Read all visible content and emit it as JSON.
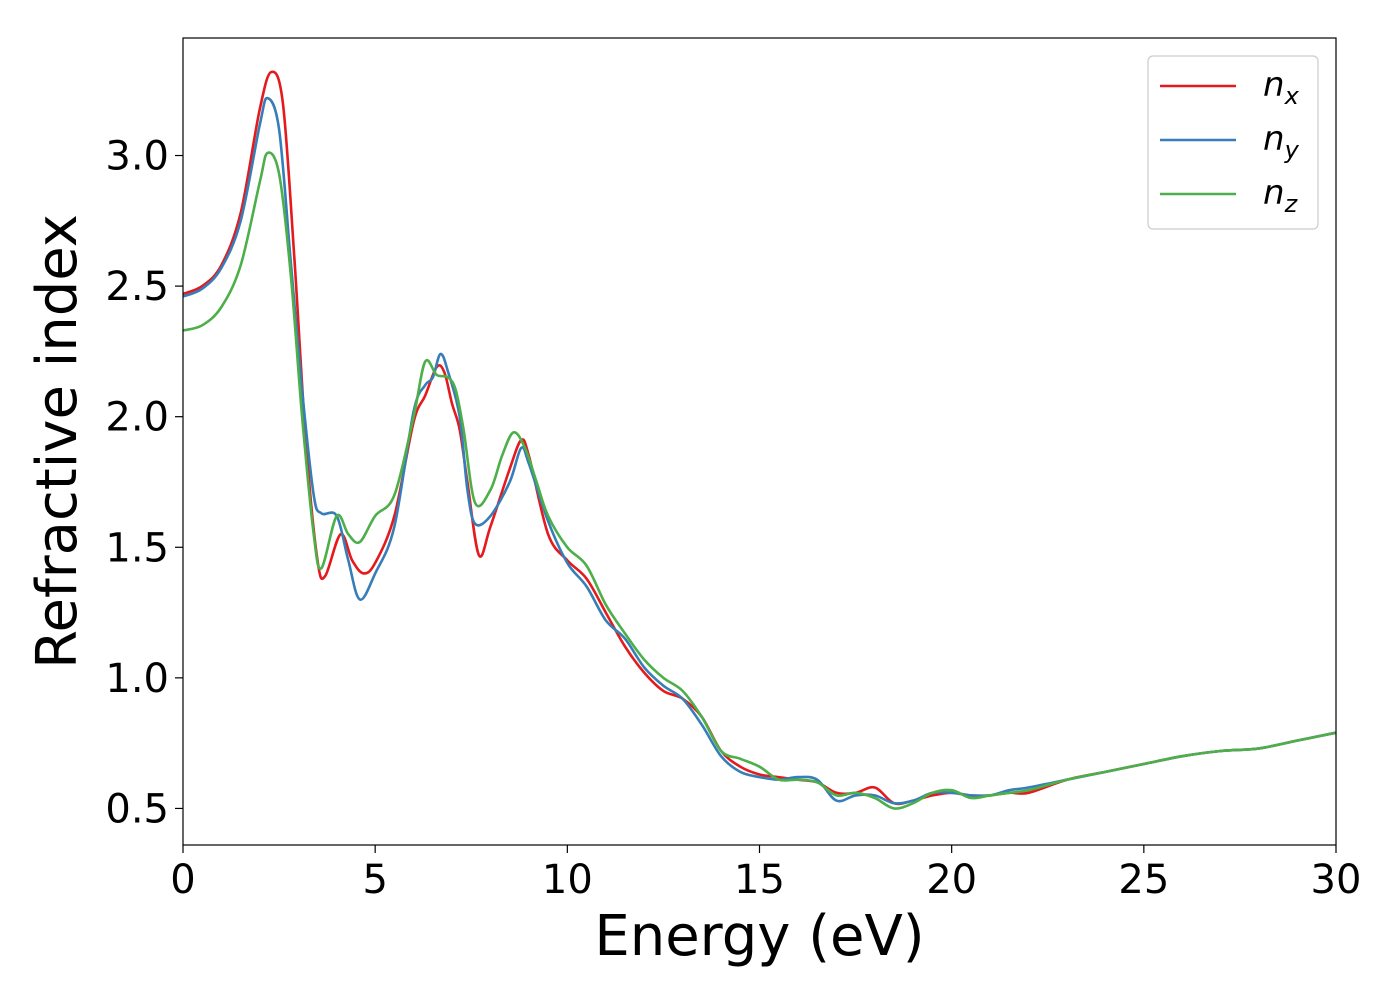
{
  "chart_data": {
    "type": "line",
    "title": "",
    "xlabel": "Energy (eV)",
    "ylabel": "Refractive index",
    "xlim": [
      0,
      30
    ],
    "ylim": [
      0.36,
      3.45
    ],
    "xticks": [
      0,
      5,
      10,
      15,
      20,
      25,
      30
    ],
    "xtick_labels": [
      "0",
      "5",
      "10",
      "15",
      "20",
      "25",
      "30"
    ],
    "yticks": [
      0.5,
      1.0,
      1.5,
      2.0,
      2.5,
      3.0
    ],
    "ytick_labels": [
      "0.5",
      "1.0",
      "1.5",
      "2.0",
      "2.5",
      "3.0"
    ],
    "grid": false,
    "legend_position": "top-right",
    "series": [
      {
        "name": "n",
        "subscript": "x",
        "color": "#e41a1c",
        "points": [
          [
            0,
            2.47
          ],
          [
            0.5,
            2.5
          ],
          [
            1.0,
            2.58
          ],
          [
            1.5,
            2.78
          ],
          [
            2.0,
            3.18
          ],
          [
            2.3,
            3.32
          ],
          [
            2.6,
            3.2
          ],
          [
            2.9,
            2.6
          ],
          [
            3.2,
            1.9
          ],
          [
            3.5,
            1.45
          ],
          [
            3.7,
            1.39
          ],
          [
            4.1,
            1.55
          ],
          [
            4.4,
            1.45
          ],
          [
            4.7,
            1.4
          ],
          [
            5.0,
            1.44
          ],
          [
            5.5,
            1.62
          ],
          [
            6.0,
            1.98
          ],
          [
            6.3,
            2.08
          ],
          [
            6.6,
            2.19
          ],
          [
            6.8,
            2.17
          ],
          [
            7.0,
            2.05
          ],
          [
            7.2,
            1.95
          ],
          [
            7.4,
            1.75
          ],
          [
            7.7,
            1.47
          ],
          [
            8.0,
            1.58
          ],
          [
            8.5,
            1.8
          ],
          [
            8.8,
            1.91
          ],
          [
            9.0,
            1.85
          ],
          [
            9.5,
            1.55
          ],
          [
            10.0,
            1.45
          ],
          [
            10.5,
            1.38
          ],
          [
            11.0,
            1.25
          ],
          [
            11.5,
            1.12
          ],
          [
            12.0,
            1.02
          ],
          [
            12.5,
            0.95
          ],
          [
            13.0,
            0.92
          ],
          [
            13.5,
            0.85
          ],
          [
            14.0,
            0.72
          ],
          [
            14.5,
            0.66
          ],
          [
            15.0,
            0.63
          ],
          [
            15.5,
            0.62
          ],
          [
            16.0,
            0.61
          ],
          [
            16.5,
            0.6
          ],
          [
            17.0,
            0.56
          ],
          [
            17.5,
            0.56
          ],
          [
            18.0,
            0.58
          ],
          [
            18.5,
            0.52
          ],
          [
            19.0,
            0.53
          ],
          [
            19.5,
            0.55
          ],
          [
            20.0,
            0.56
          ],
          [
            20.5,
            0.55
          ],
          [
            21.0,
            0.55
          ],
          [
            21.5,
            0.56
          ],
          [
            22.0,
            0.56
          ],
          [
            23.0,
            0.61
          ],
          [
            24.0,
            0.64
          ],
          [
            25.0,
            0.67
          ],
          [
            26.0,
            0.7
          ],
          [
            27.0,
            0.72
          ],
          [
            28.0,
            0.73
          ],
          [
            29.0,
            0.76
          ],
          [
            30.0,
            0.79
          ]
        ]
      },
      {
        "name": "n",
        "subscript": "y",
        "color": "#377eb8",
        "points": [
          [
            0,
            2.46
          ],
          [
            0.5,
            2.49
          ],
          [
            1.0,
            2.57
          ],
          [
            1.5,
            2.75
          ],
          [
            2.0,
            3.12
          ],
          [
            2.2,
            3.22
          ],
          [
            2.5,
            3.1
          ],
          [
            2.8,
            2.6
          ],
          [
            3.1,
            2.1
          ],
          [
            3.4,
            1.7
          ],
          [
            3.6,
            1.63
          ],
          [
            4.0,
            1.62
          ],
          [
            4.3,
            1.45
          ],
          [
            4.6,
            1.3
          ],
          [
            5.0,
            1.4
          ],
          [
            5.5,
            1.58
          ],
          [
            6.0,
            2.02
          ],
          [
            6.3,
            2.12
          ],
          [
            6.5,
            2.15
          ],
          [
            6.7,
            2.24
          ],
          [
            6.9,
            2.17
          ],
          [
            7.2,
            2.0
          ],
          [
            7.4,
            1.72
          ],
          [
            7.6,
            1.59
          ],
          [
            8.0,
            1.62
          ],
          [
            8.5,
            1.75
          ],
          [
            8.8,
            1.88
          ],
          [
            9.0,
            1.82
          ],
          [
            9.5,
            1.6
          ],
          [
            10.0,
            1.44
          ],
          [
            10.5,
            1.35
          ],
          [
            11.0,
            1.22
          ],
          [
            11.5,
            1.15
          ],
          [
            12.0,
            1.04
          ],
          [
            12.5,
            0.97
          ],
          [
            13.0,
            0.92
          ],
          [
            13.5,
            0.82
          ],
          [
            14.0,
            0.7
          ],
          [
            14.5,
            0.64
          ],
          [
            15.0,
            0.62
          ],
          [
            15.5,
            0.61
          ],
          [
            16.0,
            0.62
          ],
          [
            16.5,
            0.61
          ],
          [
            17.0,
            0.53
          ],
          [
            17.5,
            0.55
          ],
          [
            18.0,
            0.55
          ],
          [
            18.5,
            0.52
          ],
          [
            19.0,
            0.53
          ],
          [
            19.5,
            0.56
          ],
          [
            20.0,
            0.56
          ],
          [
            20.5,
            0.55
          ],
          [
            21.0,
            0.55
          ],
          [
            21.5,
            0.57
          ],
          [
            22.0,
            0.58
          ],
          [
            23.0,
            0.61
          ],
          [
            24.0,
            0.64
          ],
          [
            25.0,
            0.67
          ],
          [
            26.0,
            0.7
          ],
          [
            27.0,
            0.72
          ],
          [
            28.0,
            0.73
          ],
          [
            29.0,
            0.76
          ],
          [
            30.0,
            0.79
          ]
        ]
      },
      {
        "name": "n",
        "subscript": "z",
        "color": "#4daf4a",
        "points": [
          [
            0,
            2.33
          ],
          [
            0.5,
            2.35
          ],
          [
            1.0,
            2.42
          ],
          [
            1.5,
            2.58
          ],
          [
            2.0,
            2.9
          ],
          [
            2.2,
            3.01
          ],
          [
            2.5,
            2.93
          ],
          [
            2.8,
            2.55
          ],
          [
            3.1,
            2.0
          ],
          [
            3.4,
            1.55
          ],
          [
            3.6,
            1.42
          ],
          [
            4.0,
            1.62
          ],
          [
            4.3,
            1.55
          ],
          [
            4.6,
            1.52
          ],
          [
            5.0,
            1.62
          ],
          [
            5.5,
            1.7
          ],
          [
            6.0,
            2.0
          ],
          [
            6.3,
            2.21
          ],
          [
            6.6,
            2.16
          ],
          [
            6.9,
            2.15
          ],
          [
            7.1,
            2.1
          ],
          [
            7.3,
            1.95
          ],
          [
            7.6,
            1.67
          ],
          [
            8.0,
            1.72
          ],
          [
            8.3,
            1.85
          ],
          [
            8.6,
            1.94
          ],
          [
            8.9,
            1.88
          ],
          [
            9.2,
            1.75
          ],
          [
            9.5,
            1.62
          ],
          [
            10.0,
            1.5
          ],
          [
            10.5,
            1.43
          ],
          [
            11.0,
            1.28
          ],
          [
            11.5,
            1.17
          ],
          [
            12.0,
            1.07
          ],
          [
            12.5,
            1.0
          ],
          [
            13.0,
            0.95
          ],
          [
            13.5,
            0.85
          ],
          [
            14.0,
            0.72
          ],
          [
            14.5,
            0.69
          ],
          [
            15.0,
            0.66
          ],
          [
            15.5,
            0.61
          ],
          [
            16.0,
            0.61
          ],
          [
            16.5,
            0.6
          ],
          [
            17.0,
            0.55
          ],
          [
            17.5,
            0.56
          ],
          [
            18.0,
            0.54
          ],
          [
            18.5,
            0.5
          ],
          [
            19.0,
            0.52
          ],
          [
            19.5,
            0.56
          ],
          [
            20.0,
            0.57
          ],
          [
            20.5,
            0.54
          ],
          [
            21.0,
            0.55
          ],
          [
            21.5,
            0.56
          ],
          [
            22.0,
            0.57
          ],
          [
            23.0,
            0.61
          ],
          [
            24.0,
            0.64
          ],
          [
            25.0,
            0.67
          ],
          [
            26.0,
            0.7
          ],
          [
            27.0,
            0.72
          ],
          [
            28.0,
            0.73
          ],
          [
            29.0,
            0.76
          ],
          [
            30.0,
            0.79
          ]
        ]
      }
    ]
  }
}
